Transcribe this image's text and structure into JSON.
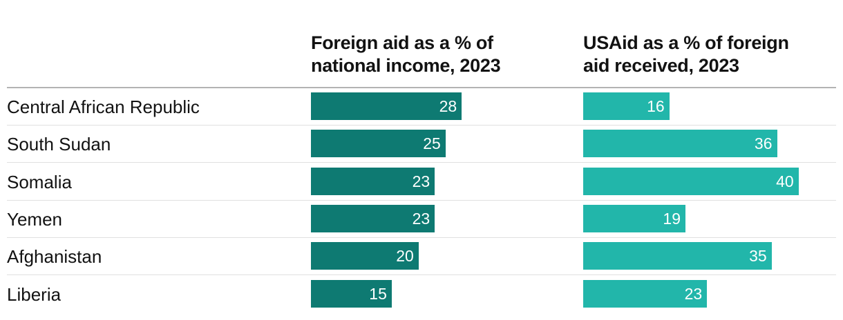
{
  "chart_data": {
    "type": "bar",
    "orientation": "horizontal",
    "categories": [
      "Central African Republic",
      "South Sudan",
      "Somalia",
      "Yemen",
      "Afghanistan",
      "Liberia"
    ],
    "series": [
      {
        "name": "Foreign aid as a % of national income, 2023",
        "color": "#0e7a72",
        "values": [
          28,
          25,
          23,
          23,
          20,
          15
        ]
      },
      {
        "name": "USAid as a % of foreign aid received, 2023",
        "color": "#22b6aa",
        "values": [
          16,
          36,
          40,
          19,
          35,
          23
        ]
      }
    ],
    "xlim": [
      0,
      48
    ],
    "grid": false,
    "legend": "none"
  },
  "headers": {
    "series1_line1": "Foreign aid as a % of",
    "series1_line2": "national income, 2023",
    "series2_line1": "USAid as a % of foreign",
    "series2_line2": "aid received, 2023"
  }
}
